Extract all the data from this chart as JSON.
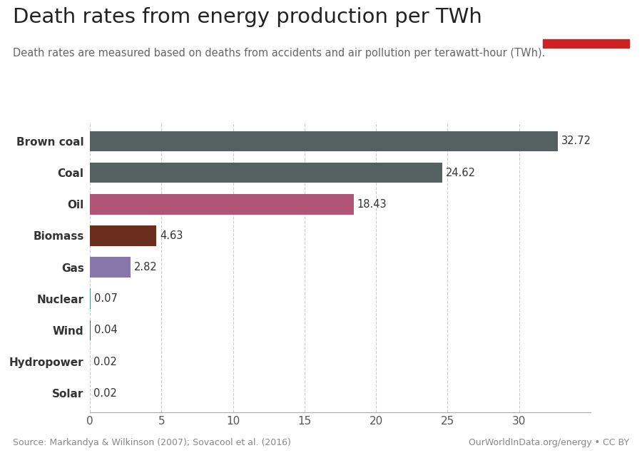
{
  "categories": [
    "Brown coal",
    "Coal",
    "Oil",
    "Biomass",
    "Gas",
    "Nuclear",
    "Wind",
    "Hydropower",
    "Solar"
  ],
  "values": [
    32.72,
    24.62,
    18.43,
    4.63,
    2.82,
    0.07,
    0.04,
    0.02,
    0.02
  ],
  "bar_colors": [
    "#556060",
    "#556060",
    "#b05575",
    "#6b2e1e",
    "#8878aa",
    "#4a9a80",
    "#556060",
    "#556060",
    "#556060"
  ],
  "title": "Death rates from energy production per TWh",
  "subtitle": "Death rates are measured based on deaths from accidents and air pollution per terawatt-hour (TWh).",
  "source_left": "Source: Markandya & Wilkinson (2007); Sovacool et al. (2016)",
  "source_right": "OurWorldInData.org/energy • CC BY",
  "xlim": [
    0,
    35
  ],
  "xticks": [
    0,
    5,
    10,
    15,
    20,
    25,
    30
  ],
  "bg_color": "#ffffff",
  "grid_color": "#cccccc",
  "bar_height": 0.65,
  "title_fontsize": 21,
  "subtitle_fontsize": 10.5,
  "label_fontsize": 11,
  "value_fontsize": 10.5,
  "tick_fontsize": 11,
  "source_fontsize": 9,
  "owid_box_color": "#1a2d5a",
  "owid_red_color": "#cc2222",
  "owid_text_color": "#ffffff"
}
